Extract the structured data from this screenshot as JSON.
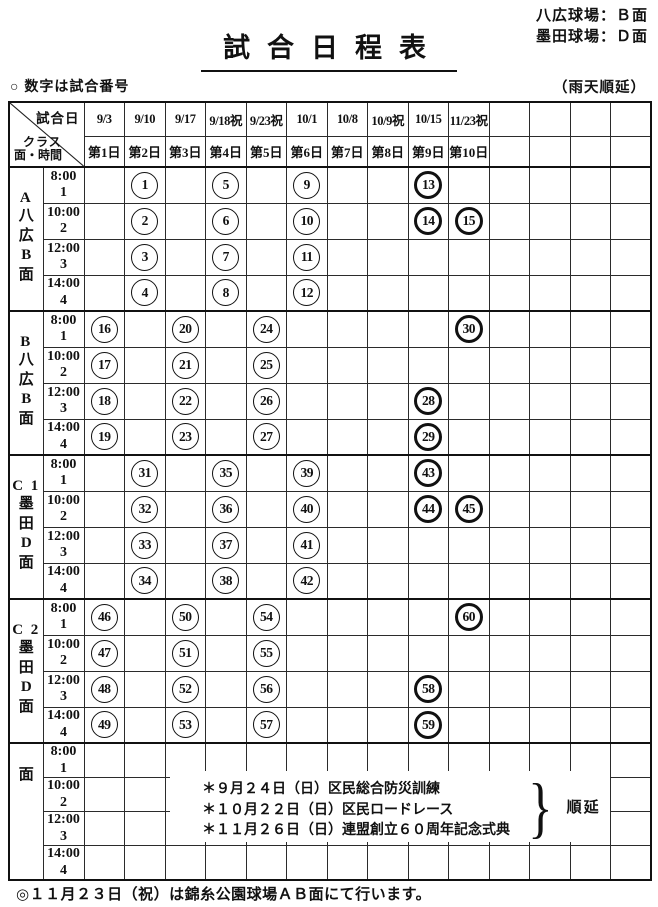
{
  "page": {
    "venue_note_line1": "八広球場：Ｂ面",
    "venue_note_line2": "墨田球場：Ｄ面",
    "title": "試合日程表",
    "legend_left": "○ 数字は試合番号",
    "legend_right": "（雨天順延）",
    "footer_note": "◎１１月２３日（祝）は錦糸公園球場ＡＢ面にて行います。"
  },
  "table": {
    "corner": {
      "top_label": "試合日",
      "bottom_label_line1": "クラス",
      "bottom_label_line2": "面・時間"
    },
    "dates": [
      "9/3",
      "9/10",
      "9/17",
      "9/18祝",
      "9/23祝",
      "10/1",
      "10/8",
      "10/9祝",
      "10/15",
      "11/23祝"
    ],
    "day_labels": [
      "第1日",
      "第2日",
      "第3日",
      "第4日",
      "第5日",
      "第6日",
      "第7日",
      "第8日",
      "第9日",
      "第10日"
    ],
    "extra_empty_columns": 4,
    "time_rows": [
      {
        "time": "8:00",
        "game_no": "1"
      },
      {
        "time": "10:00",
        "game_no": "2"
      },
      {
        "time": "12:00",
        "game_no": "3"
      },
      {
        "time": "14:00",
        "game_no": "4"
      }
    ],
    "groups": [
      {
        "class_label": "A",
        "venue_chars": [
          "八",
          "広",
          "B",
          "面"
        ],
        "rows": [
          [
            {
              "no": "1",
              "col": 1,
              "bold": false
            },
            {
              "no": "5",
              "col": 3,
              "bold": false
            },
            {
              "no": "9",
              "col": 5,
              "bold": false
            },
            {
              "no": "13",
              "col": 8,
              "bold": true
            }
          ],
          [
            {
              "no": "2",
              "col": 1,
              "bold": false
            },
            {
              "no": "6",
              "col": 3,
              "bold": false
            },
            {
              "no": "10",
              "col": 5,
              "bold": false
            },
            {
              "no": "14",
              "col": 8,
              "bold": true
            },
            {
              "no": "15",
              "col": 9,
              "bold": true
            }
          ],
          [
            {
              "no": "3",
              "col": 1,
              "bold": false
            },
            {
              "no": "7",
              "col": 3,
              "bold": false
            },
            {
              "no": "11",
              "col": 5,
              "bold": false
            }
          ],
          [
            {
              "no": "4",
              "col": 1,
              "bold": false
            },
            {
              "no": "8",
              "col": 3,
              "bold": false
            },
            {
              "no": "12",
              "col": 5,
              "bold": false
            }
          ]
        ]
      },
      {
        "class_label": "B",
        "venue_chars": [
          "八",
          "広",
          "B",
          "面"
        ],
        "rows": [
          [
            {
              "no": "16",
              "col": 0,
              "bold": false
            },
            {
              "no": "20",
              "col": 2,
              "bold": false
            },
            {
              "no": "24",
              "col": 4,
              "bold": false
            },
            {
              "no": "30",
              "col": 9,
              "bold": true
            }
          ],
          [
            {
              "no": "17",
              "col": 0,
              "bold": false
            },
            {
              "no": "21",
              "col": 2,
              "bold": false
            },
            {
              "no": "25",
              "col": 4,
              "bold": false
            }
          ],
          [
            {
              "no": "18",
              "col": 0,
              "bold": false
            },
            {
              "no": "22",
              "col": 2,
              "bold": false
            },
            {
              "no": "26",
              "col": 4,
              "bold": false
            },
            {
              "no": "28",
              "col": 8,
              "bold": true
            }
          ],
          [
            {
              "no": "19",
              "col": 0,
              "bold": false
            },
            {
              "no": "23",
              "col": 2,
              "bold": false
            },
            {
              "no": "27",
              "col": 4,
              "bold": false
            },
            {
              "no": "29",
              "col": 8,
              "bold": true
            }
          ]
        ]
      },
      {
        "class_label": "C 1",
        "venue_chars": [
          "墨",
          "田",
          "D",
          "面"
        ],
        "rows": [
          [
            {
              "no": "31",
              "col": 1,
              "bold": false
            },
            {
              "no": "35",
              "col": 3,
              "bold": false
            },
            {
              "no": "39",
              "col": 5,
              "bold": false
            },
            {
              "no": "43",
              "col": 8,
              "bold": true
            }
          ],
          [
            {
              "no": "32",
              "col": 1,
              "bold": false
            },
            {
              "no": "36",
              "col": 3,
              "bold": false
            },
            {
              "no": "40",
              "col": 5,
              "bold": false
            },
            {
              "no": "44",
              "col": 8,
              "bold": true
            },
            {
              "no": "45",
              "col": 9,
              "bold": true
            }
          ],
          [
            {
              "no": "33",
              "col": 1,
              "bold": false
            },
            {
              "no": "37",
              "col": 3,
              "bold": false
            },
            {
              "no": "41",
              "col": 5,
              "bold": false
            }
          ],
          [
            {
              "no": "34",
              "col": 1,
              "bold": false
            },
            {
              "no": "38",
              "col": 3,
              "bold": false
            },
            {
              "no": "42",
              "col": 5,
              "bold": false
            }
          ]
        ]
      },
      {
        "class_label": "C 2",
        "venue_chars": [
          "墨",
          "田",
          "D",
          "面"
        ],
        "rows": [
          [
            {
              "no": "46",
              "col": 0,
              "bold": false
            },
            {
              "no": "50",
              "col": 2,
              "bold": false
            },
            {
              "no": "54",
              "col": 4,
              "bold": false
            },
            {
              "no": "60",
              "col": 9,
              "bold": true
            }
          ],
          [
            {
              "no": "47",
              "col": 0,
              "bold": false
            },
            {
              "no": "51",
              "col": 2,
              "bold": false
            },
            {
              "no": "55",
              "col": 4,
              "bold": false
            }
          ],
          [
            {
              "no": "48",
              "col": 0,
              "bold": false
            },
            {
              "no": "52",
              "col": 2,
              "bold": false
            },
            {
              "no": "56",
              "col": 4,
              "bold": false
            },
            {
              "no": "58",
              "col": 8,
              "bold": true
            }
          ],
          [
            {
              "no": "49",
              "col": 0,
              "bold": false
            },
            {
              "no": "53",
              "col": 2,
              "bold": false
            },
            {
              "no": "57",
              "col": 4,
              "bold": false
            },
            {
              "no": "59",
              "col": 8,
              "bold": true
            }
          ]
        ]
      },
      {
        "class_label": "",
        "venue_chars": [
          "面"
        ],
        "rows": [
          [],
          [],
          [],
          []
        ]
      }
    ]
  },
  "notes": {
    "lines": [
      "＊９月２４日（日）区民総合防災訓練",
      "＊１０月２２日（日）区民ロードレース",
      "＊１１月２６日（日）連盟創立６０周年記念式典"
    ],
    "postpone_label": "順延"
  }
}
